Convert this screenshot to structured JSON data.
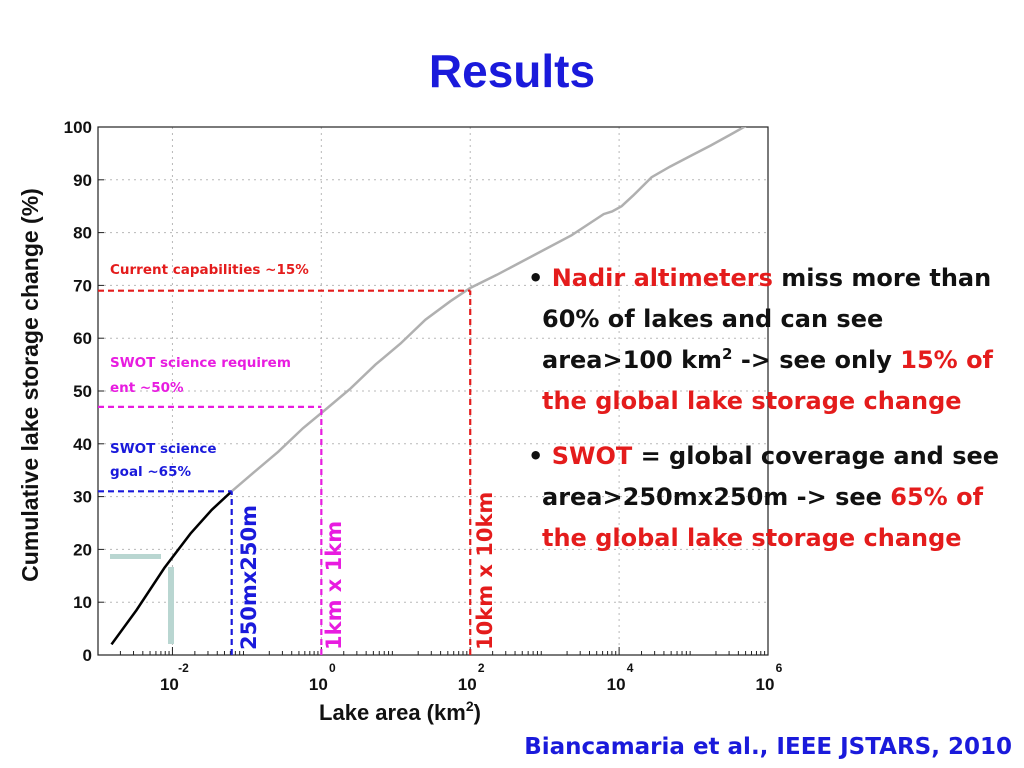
{
  "slide": {
    "title": "Results",
    "citation": "Biancamaria et al., IEEE JSTARS, 2010"
  },
  "bullets": [
    {
      "segments": [
        {
          "text": "Nadir altimeters",
          "color": "#e41c1c"
        },
        {
          "text": " miss more than 60% of lakes and can see area>100 km",
          "color": "#111111"
        },
        {
          "text": "2",
          "color": "#111111",
          "sup": true
        },
        {
          "text": " -> see only ",
          "color": "#111111"
        },
        {
          "text": "15% of the global lake storage change",
          "color": "#e41c1c"
        }
      ]
    },
    {
      "segments": [
        {
          "text": "SWOT",
          "color": "#e41c1c"
        },
        {
          "text": " = global coverage and see area>250mx250m -> see ",
          "color": "#111111"
        },
        {
          "text": "65% of the global lake storage change",
          "color": "#e41c1c"
        }
      ]
    }
  ],
  "chart_data": {
    "type": "line",
    "x_scale": "log",
    "xlabel": "Lake area (km",
    "xlabel_sup": "2",
    "xlabel_end": ")",
    "ylabel": "Cumulative lake storage change (%)",
    "xlim": [
      0.001,
      1000000
    ],
    "ylim": [
      0,
      100
    ],
    "grid": true,
    "x_ticks": [
      {
        "value": 0.01,
        "base": "10",
        "exp": "-2"
      },
      {
        "value": 1,
        "base": "10",
        "exp": "0"
      },
      {
        "value": 100,
        "base": "10",
        "exp": "2"
      },
      {
        "value": 10000,
        "base": "10",
        "exp": "4"
      },
      {
        "value": 1000000,
        "base": "10",
        "exp": "6"
      }
    ],
    "y_ticks": [
      "0",
      "10",
      "20",
      "30",
      "40",
      "50",
      "60",
      "70",
      "80",
      "90",
      "100"
    ],
    "series": [
      {
        "color": "#000000",
        "x": [
          0.00152,
          0.00329,
          0.00779,
          0.0175,
          0.0338,
          0.0625
        ],
        "y": [
          2,
          8.5,
          16.5,
          23,
          27.5,
          31
        ]
      },
      {
        "color": "#b0b0b0",
        "x": [
          0.0625,
          0.122,
          0.264,
          0.571,
          1.14,
          2.47,
          5.34,
          11.6,
          25.0,
          54.1,
          100,
          228,
          493,
          1069,
          2310,
          4290,
          6210,
          8040,
          10800,
          15400,
          27300,
          48400,
          90800,
          170000,
          309000,
          549000,
          1070000,
          2390000
        ],
        "y": [
          31,
          34.5,
          38.5,
          43,
          46.5,
          50.5,
          55,
          59,
          63.5,
          67,
          69.5,
          72,
          74.5,
          77,
          79.5,
          82,
          83.5,
          84,
          85,
          87,
          90.5,
          92.5,
          94.5,
          96.5,
          98.5,
          100.5,
          102.5,
          105.5
        ]
      }
    ],
    "reference_lines": [
      {
        "x": 0.0625,
        "y": 31,
        "color": "#1a1adb",
        "label": "250mx250m",
        "annotation": [
          "SWOT science",
          " goal ~65%"
        ]
      },
      {
        "x": 1,
        "y": 47,
        "color": "#e81ce0",
        "label": "1km x 1km",
        "annotation": [
          "SWOT science requirem",
          "ent ~50%"
        ]
      },
      {
        "x": 100,
        "y": 69,
        "color": "#e41c1c",
        "label": "10km x 10km",
        "annotation": [
          "Current capabilities ~15%"
        ]
      }
    ]
  }
}
